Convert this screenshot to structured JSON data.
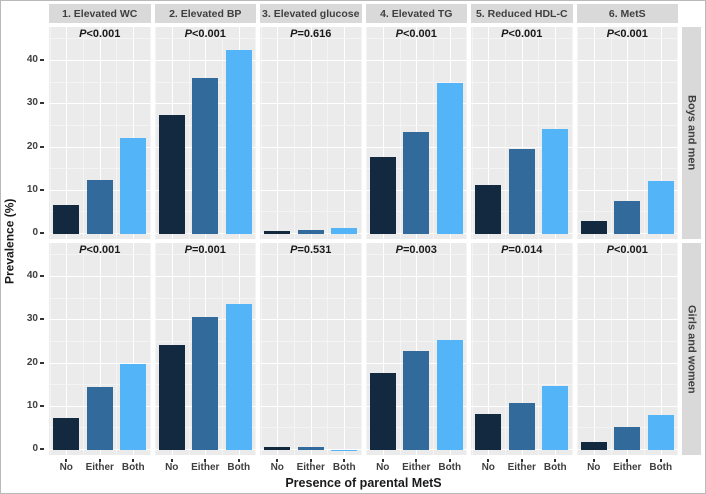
{
  "chart_data": {
    "type": "bar",
    "title": "",
    "ylabel": "Prevalence (%)",
    "xlabel": "Presence of parental MetS",
    "facet_columns": [
      "1. Elevated WC",
      "2. Elevated BP",
      "3. Elevated glucose",
      "4. Elevated TG",
      "5. Reduced HDL-C",
      "6. MetS"
    ],
    "facet_rows": [
      "Boys and men",
      "Girls and women"
    ],
    "categories": [
      "No",
      "Either",
      "Both"
    ],
    "y_ticks": [
      0,
      10,
      20,
      30,
      40
    ],
    "y_minor_ticks": [
      5,
      15,
      25,
      35,
      45
    ],
    "ylim": [
      0,
      46.5
    ],
    "grid": true,
    "legend": "none",
    "bar_colors": [
      "#132940",
      "#336a9c",
      "#54b4f8"
    ],
    "colors": {
      "panel_bg": "#ebebeb",
      "strip_bg": "#d9d9d9",
      "grid_major": "#ffffff",
      "grid_minor": "#f4f4f4",
      "axis_text": "#3f3f3f",
      "title_text": "#1a1a1a"
    },
    "panels": [
      {
        "row": "Boys and men",
        "column": "1. Elevated WC",
        "p_label": "P<0.001",
        "values": [
          6.8,
          12.6,
          22.2
        ]
      },
      {
        "row": "Boys and men",
        "column": "2. Elevated BP",
        "p_label": "P<0.001",
        "values": [
          27.5,
          36.0,
          42.5
        ]
      },
      {
        "row": "Boys and men",
        "column": "3. Elevated glucose",
        "p_label": "P=0.616",
        "values": [
          0.7,
          1.0,
          1.4
        ]
      },
      {
        "row": "Boys and men",
        "column": "4. Elevated TG",
        "p_label": "P<0.001",
        "values": [
          17.8,
          23.7,
          35.0
        ]
      },
      {
        "row": "Boys and men",
        "column": "5. Reduced HDL-C",
        "p_label": "P<0.001",
        "values": [
          11.4,
          19.6,
          24.4
        ]
      },
      {
        "row": "Boys and men",
        "column": "6. MetS",
        "p_label": "P<0.001",
        "values": [
          3.0,
          7.6,
          12.2
        ]
      },
      {
        "row": "Girls and women",
        "column": "1. Elevated WC",
        "p_label": "P<0.001",
        "values": [
          7.4,
          14.5,
          19.8
        ]
      },
      {
        "row": "Girls and women",
        "column": "2. Elevated BP",
        "p_label": "P=0.001",
        "values": [
          24.4,
          30.7,
          33.7
        ]
      },
      {
        "row": "Girls and women",
        "column": "3. Elevated glucose",
        "p_label": "P=0.531",
        "values": [
          0.8,
          0.7,
          0.1
        ]
      },
      {
        "row": "Girls and women",
        "column": "4. Elevated TG",
        "p_label": "P=0.003",
        "values": [
          17.8,
          22.8,
          25.5
        ]
      },
      {
        "row": "Girls and women",
        "column": "5. Reduced HDL-C",
        "p_label": "P=0.014",
        "values": [
          8.3,
          10.9,
          14.8
        ]
      },
      {
        "row": "Girls and women",
        "column": "6. MetS",
        "p_label": "P<0.001",
        "values": [
          1.9,
          5.4,
          8.1
        ]
      }
    ]
  }
}
